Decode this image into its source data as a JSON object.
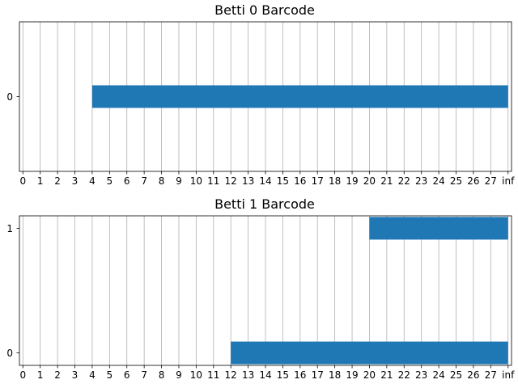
{
  "chart_data": [
    {
      "type": "barcode",
      "title": "Betti 0 Barcode",
      "x_ticks": [
        "0",
        "1",
        "2",
        "3",
        "4",
        "5",
        "6",
        "7",
        "8",
        "9",
        "10",
        "11",
        "12",
        "13",
        "14",
        "15",
        "16",
        "17",
        "18",
        "19",
        "20",
        "21",
        "22",
        "23",
        "24",
        "25",
        "26",
        "27",
        "inf"
      ],
      "y_ticks": [
        "0"
      ],
      "xlim": [
        -0.2,
        28.2
      ],
      "ylim": [
        -0.5,
        0.5
      ],
      "grid": "vertical",
      "bar_color": "#1f77b4",
      "bars": [
        {
          "y": 0,
          "birth": 4,
          "death": "inf"
        }
      ]
    },
    {
      "type": "barcode",
      "title": "Betti 1 Barcode",
      "x_ticks": [
        "0",
        "1",
        "2",
        "3",
        "4",
        "5",
        "6",
        "7",
        "8",
        "9",
        "10",
        "11",
        "12",
        "13",
        "14",
        "15",
        "16",
        "17",
        "18",
        "19",
        "20",
        "21",
        "22",
        "23",
        "24",
        "25",
        "26",
        "27",
        "inf"
      ],
      "y_ticks": [
        "0",
        "1"
      ],
      "xlim": [
        -0.2,
        28.2
      ],
      "ylim": [
        -0.1,
        1.1
      ],
      "grid": "vertical",
      "bar_color": "#1f77b4",
      "bars": [
        {
          "y": 0,
          "birth": 12,
          "death": "inf"
        },
        {
          "y": 1,
          "birth": 20,
          "death": "inf"
        }
      ]
    }
  ]
}
